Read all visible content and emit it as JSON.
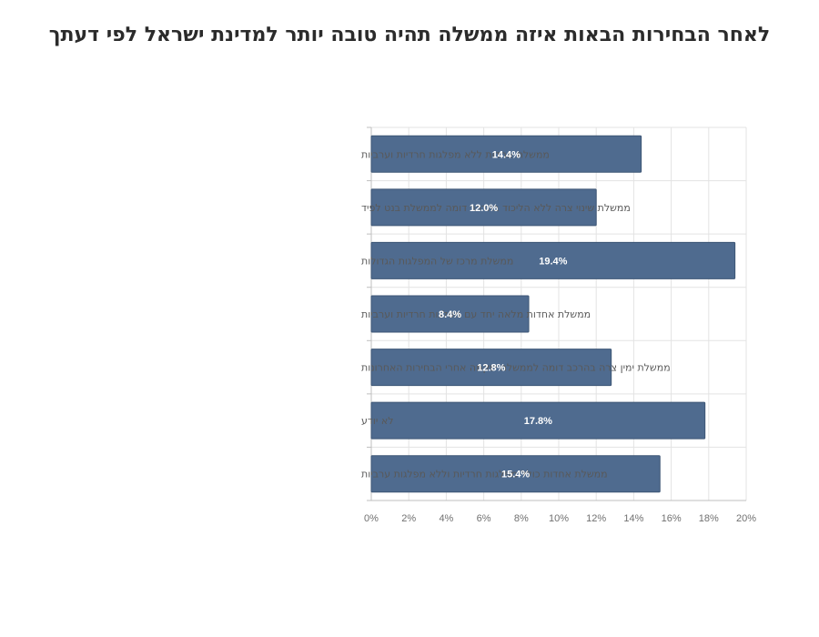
{
  "chart_data": {
    "type": "bar",
    "orientation": "horizontal",
    "title": "לאחר הבחירות הבאות איזה ממשלה תהיה טובה יותר למדינת ישראל לפי דעתך",
    "categories": [
      "ממשלת אחדות ללא מפלגות חרדיות וערביות",
      "ממשלת שינוי צרה ללא הליכוד בהרכב דומה לממשלת בנט לפיד",
      "ממשלת מרכז של המפלגות הגדולות",
      "ממשלת אחדות מלאה יחד עם מפלגות חרדיות וערביות",
      "ממשלת ימין צרה בהרכב דומה לממשלה שקמה אחרי הבחירות האחרונות",
      "לא יודע",
      "ממשלת אחדות כולל מפלגות חרדיות וללא מפלגות ערביות"
    ],
    "values": [
      14.4,
      12.0,
      19.4,
      8.4,
      12.8,
      17.8,
      15.4
    ],
    "data_labels": [
      "14.4%",
      "12.0%",
      "19.4%",
      "8.4%",
      "12.8%",
      "17.8%",
      "15.4%"
    ],
    "x_ticks": [
      "0%",
      "2%",
      "4%",
      "6%",
      "8%",
      "10%",
      "12%",
      "14%",
      "16%",
      "18%",
      "20%"
    ],
    "xlim": [
      0,
      20
    ],
    "xlabel": "",
    "ylabel": "",
    "grid": true,
    "bar_color": "#4f6b8f"
  }
}
